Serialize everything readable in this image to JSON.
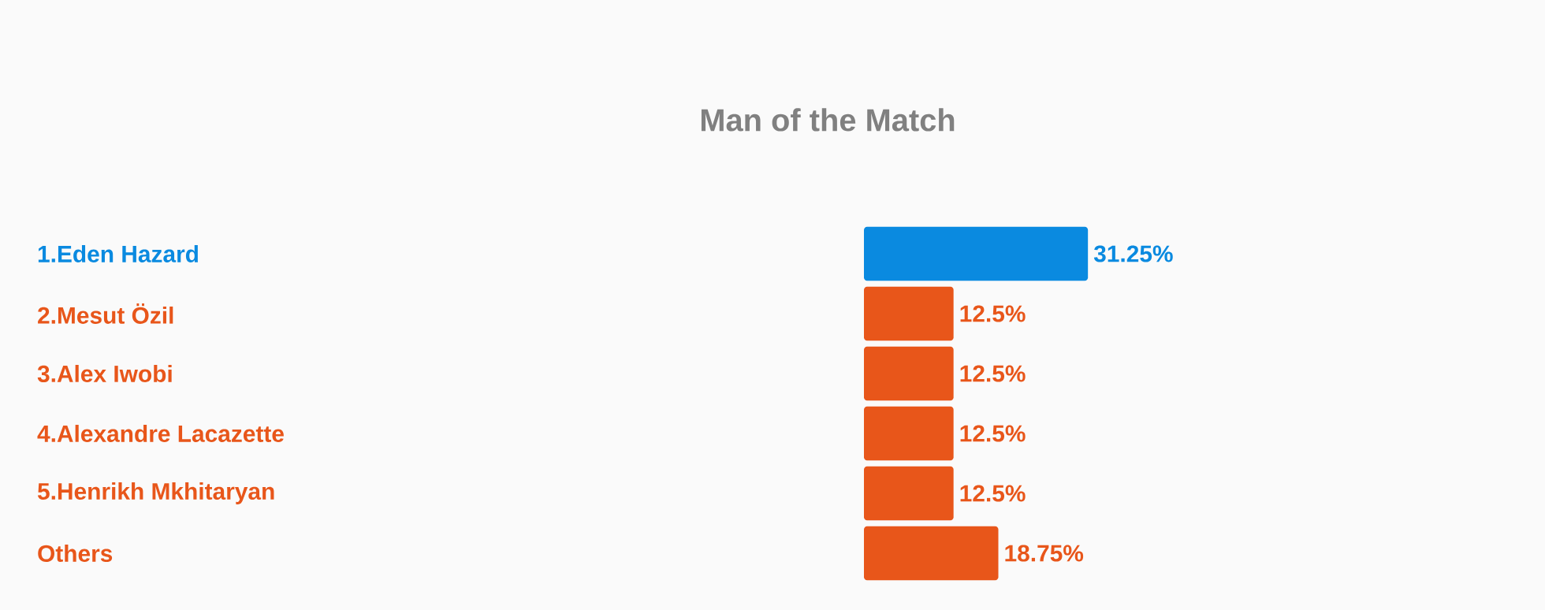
{
  "chart_data": {
    "type": "bar",
    "orientation": "horizontal",
    "title": "Man of the Match",
    "categories": [
      "1.Eden Hazard",
      "2.Mesut Özil",
      "3.Alex Iwobi",
      "4.Alexandre Lacazette",
      "5.Henrikh Mkhitaryan",
      "Others"
    ],
    "values": [
      31.25,
      12.5,
      12.5,
      12.5,
      12.5,
      18.75
    ],
    "colors": [
      "#0a8ae0",
      "#e8561a",
      "#e8561a",
      "#e8561a",
      "#e8561a",
      "#e8561a"
    ],
    "value_labels": [
      "31.25%",
      "12.5%",
      "12.5%",
      "12.5%",
      "12.5%",
      "18.75%"
    ]
  }
}
